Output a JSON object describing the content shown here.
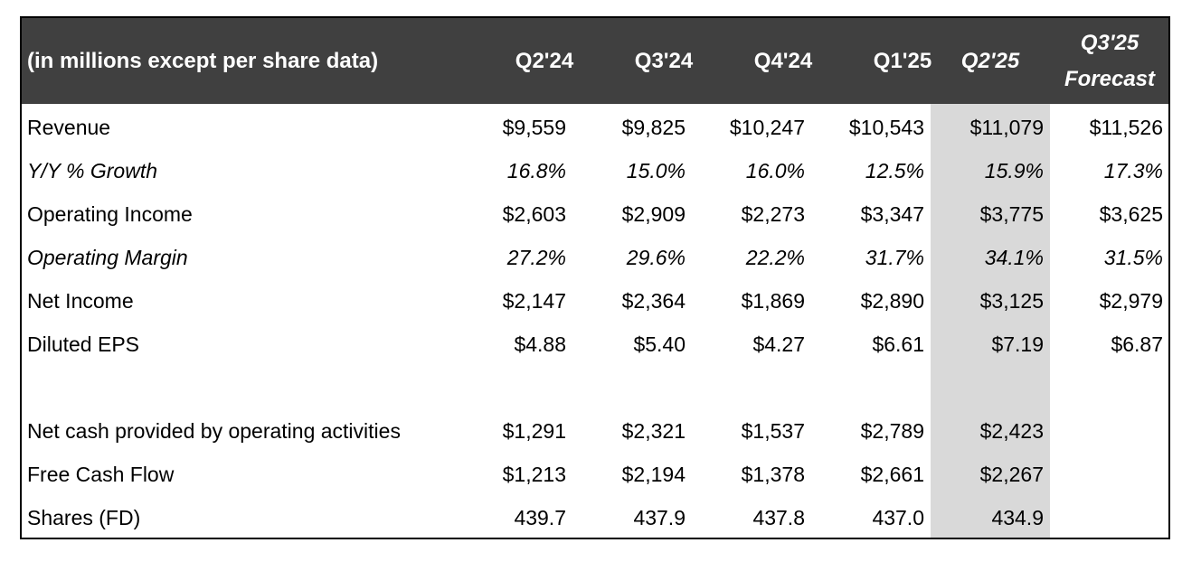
{
  "table": {
    "header": {
      "label": "(in millions except per share data)",
      "periods": [
        "Q2'24",
        "Q3'24",
        "Q4'24",
        "Q1'25",
        "Q2'25"
      ],
      "forecast_period": "Q3'25",
      "forecast_label": "Forecast"
    },
    "rows": [
      {
        "label": "Revenue",
        "values": [
          "$9,559",
          "$9,825",
          "$10,247",
          "$10,543",
          "$11,079",
          "$11,526"
        ]
      },
      {
        "label": "Y/Y % Growth",
        "values": [
          "16.8%",
          "15.0%",
          "16.0%",
          "12.5%",
          "15.9%",
          "17.3%"
        ]
      },
      {
        "label": "Operating Income",
        "values": [
          "$2,603",
          "$2,909",
          "$2,273",
          "$3,347",
          "$3,775",
          "$3,625"
        ]
      },
      {
        "label": "Operating Margin",
        "values": [
          "27.2%",
          "29.6%",
          "22.2%",
          "31.7%",
          "34.1%",
          "31.5%"
        ]
      },
      {
        "label": "Net Income",
        "values": [
          "$2,147",
          "$2,364",
          "$1,869",
          "$2,890",
          "$3,125",
          "$2,979"
        ]
      },
      {
        "label": "Diluted EPS",
        "values": [
          "$4.88",
          "$5.40",
          "$4.27",
          "$6.61",
          "$7.19",
          "$6.87"
        ]
      },
      {
        "label": "Net cash provided by operating activities",
        "values": [
          "$1,291",
          "$2,321",
          "$1,537",
          "$2,789",
          "$2,423",
          ""
        ]
      },
      {
        "label": "Free Cash Flow",
        "values": [
          "$1,213",
          "$2,194",
          "$1,378",
          "$2,661",
          "$2,267",
          ""
        ]
      },
      {
        "label": "Shares (FD)",
        "values": [
          "439.7",
          "437.9",
          "437.8",
          "437.0",
          "434.9",
          ""
        ]
      }
    ],
    "colors": {
      "header_bg": "#404040",
      "header_text": "#ffffff",
      "highlight_column": "#d9d9d9"
    }
  }
}
